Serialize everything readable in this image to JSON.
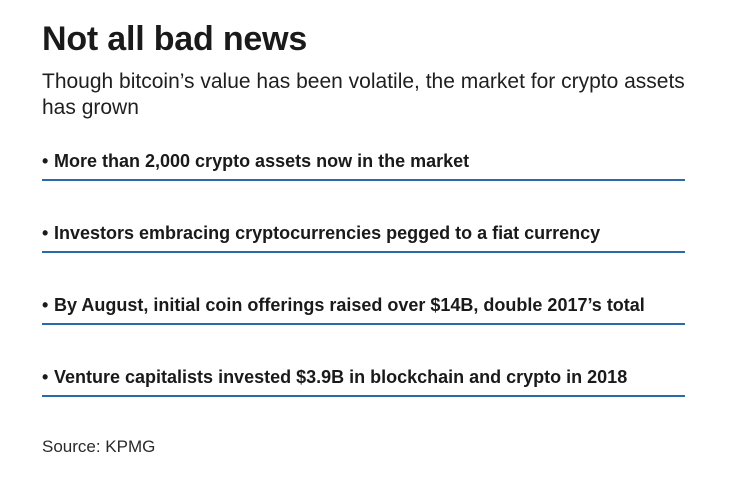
{
  "title": "Not all bad news",
  "subtitle": "Though bitcoin’s value has been volatile, the market for crypto assets has grown",
  "bullet_glyph": "•",
  "points": [
    "More than 2,000 crypto assets now in the market",
    "Investors embracing cryptocurrencies pegged to a fiat currency",
    "By August, initial coin offerings raised over $14B, double 2017’s total",
    "Venture capitalists invested $3.9B in blockchain and crypto in 2018"
  ],
  "source": "Source: KPMG",
  "colors": {
    "rule": "#2b6aa8",
    "text": "#1a1a1a"
  }
}
